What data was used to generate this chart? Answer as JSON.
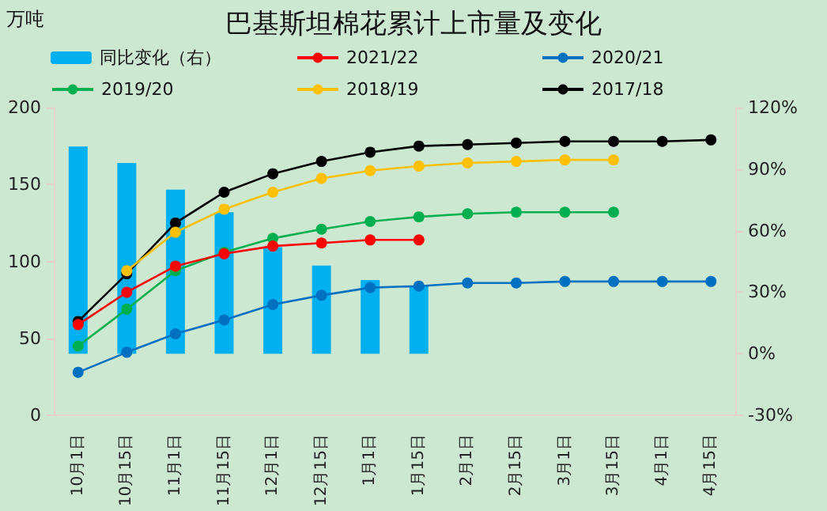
{
  "chart_data": {
    "type": "line",
    "title": "巴基斯坦棉花累计上市量及变化",
    "ylabel": "万吨",
    "categories": [
      "10月1日",
      "10月15日",
      "11月1日",
      "11月15日",
      "12月1日",
      "12月15日",
      "1月1日",
      "1月15日",
      "2月1日",
      "2月15日",
      "3月1日",
      "3月15日",
      "4月1日",
      "4月15日"
    ],
    "series": [
      {
        "name": "同比变化（右）",
        "type": "bar",
        "axis": "y2",
        "color": "#00b0f0",
        "values": [
          101,
          93,
          80,
          69,
          52,
          43,
          36,
          33,
          null,
          null,
          null,
          null,
          null,
          null
        ]
      },
      {
        "name": "2021/22",
        "color": "#ff0000",
        "values": [
          59,
          80,
          97,
          105,
          110,
          112,
          114,
          114,
          null,
          null,
          null,
          null,
          null,
          null
        ]
      },
      {
        "name": "2020/21",
        "color": "#0070c0",
        "values": [
          28,
          41,
          53,
          62,
          72,
          78,
          83,
          84,
          86,
          86,
          87,
          87,
          87,
          87
        ]
      },
      {
        "name": "2019/20",
        "color": "#00b050",
        "values": [
          45,
          69,
          94,
          106,
          115,
          121,
          126,
          129,
          131,
          132,
          132,
          132,
          null,
          null
        ]
      },
      {
        "name": "2018/19",
        "color": "#ffc000",
        "values": [
          null,
          94,
          119,
          134,
          145,
          154,
          159,
          162,
          164,
          165,
          166,
          166,
          null,
          null
        ]
      },
      {
        "name": "2017/18",
        "color": "#000000",
        "values": [
          61,
          92,
          125,
          145,
          157,
          165,
          171,
          175,
          176,
          177,
          178,
          178,
          178,
          179
        ]
      }
    ],
    "ylim": [
      0,
      200
    ],
    "yticks": [
      0,
      50,
      100,
      150,
      200
    ],
    "y2lim": [
      -30,
      120
    ],
    "y2ticks": [
      {
        "value": -30,
        "label": "-30%"
      },
      {
        "value": 0,
        "label": "0%"
      },
      {
        "value": 30,
        "label": "30%"
      },
      {
        "value": 60,
        "label": "60%"
      },
      {
        "value": 90,
        "label": "90%"
      },
      {
        "value": 120,
        "label": "120%"
      }
    ],
    "grid": false,
    "legend": "top",
    "marker": "circle",
    "line_style": "solid"
  }
}
